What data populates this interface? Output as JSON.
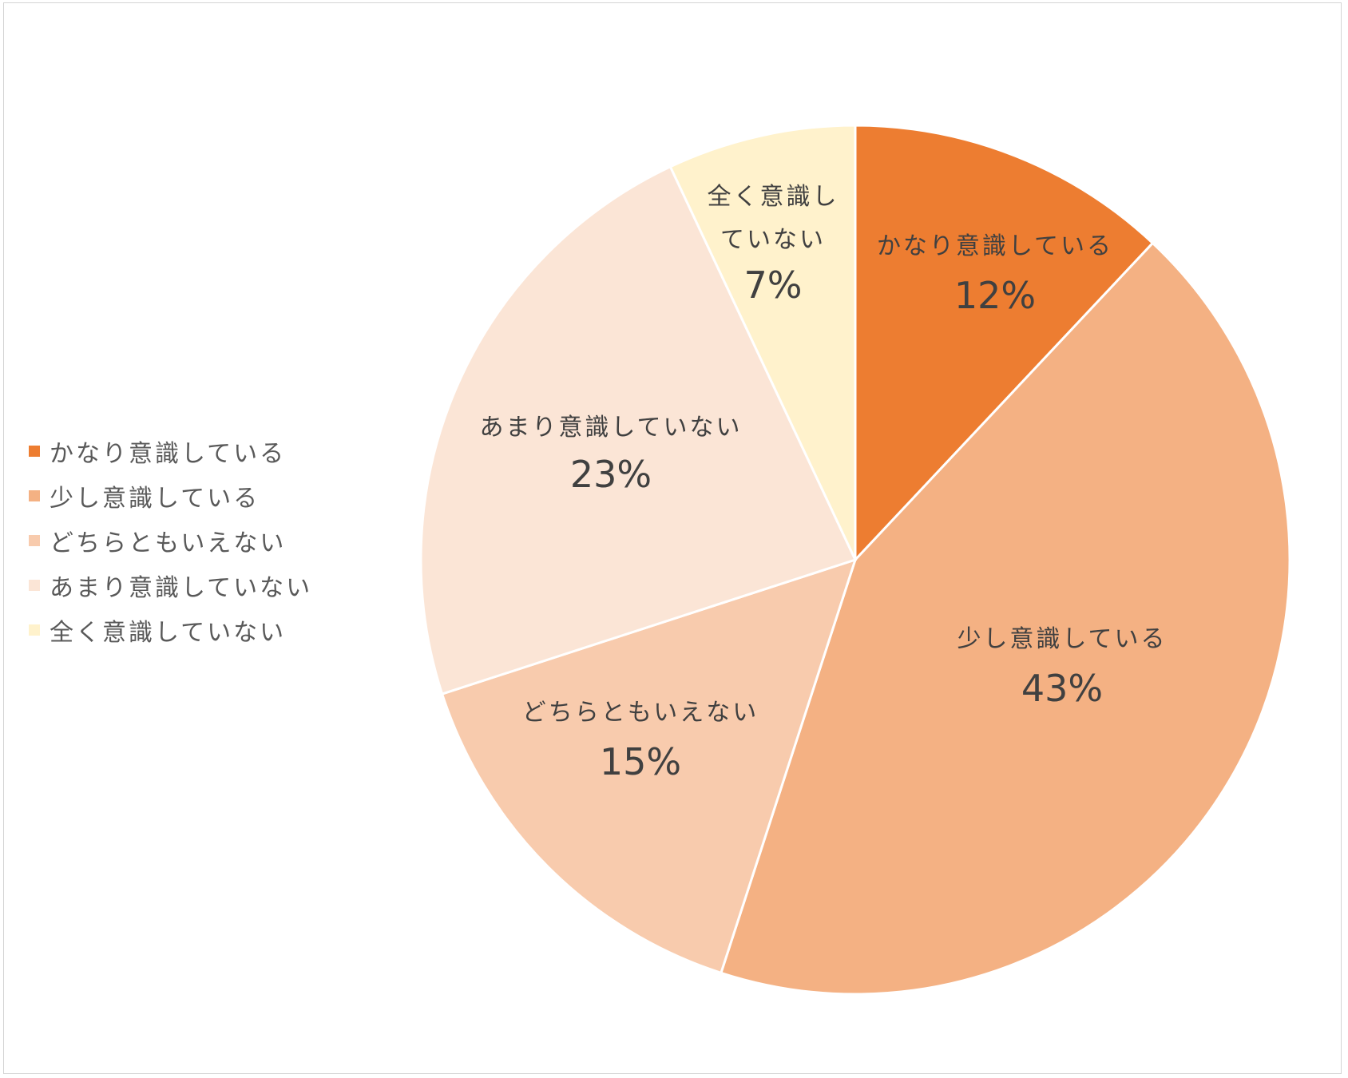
{
  "chart_data": {
    "type": "pie",
    "start": "top, clockwise",
    "legend_position": "left",
    "categories": [
      "かなり意識している",
      "少し意識している",
      "どちらともいえない",
      "あまり意識していない",
      "全く意識していない"
    ],
    "values": [
      12,
      43,
      15,
      23,
      7
    ],
    "data_labels": [
      {
        "name_lines": [
          "かなり意識している"
        ],
        "value": "12%"
      },
      {
        "name_lines": [
          "少し意識している"
        ],
        "value": "43%"
      },
      {
        "name_lines": [
          "どちらともいえない"
        ],
        "value": "15%"
      },
      {
        "name_lines": [
          "あまり意識していない"
        ],
        "value": "23%"
      },
      {
        "name_lines": [
          "全く意識し",
          "ていない"
        ],
        "value": "7%"
      }
    ],
    "colors": [
      "#ed7d31",
      "#f4b183",
      "#f8cbad",
      "#fbe5d6",
      "#fff2cc"
    ]
  }
}
